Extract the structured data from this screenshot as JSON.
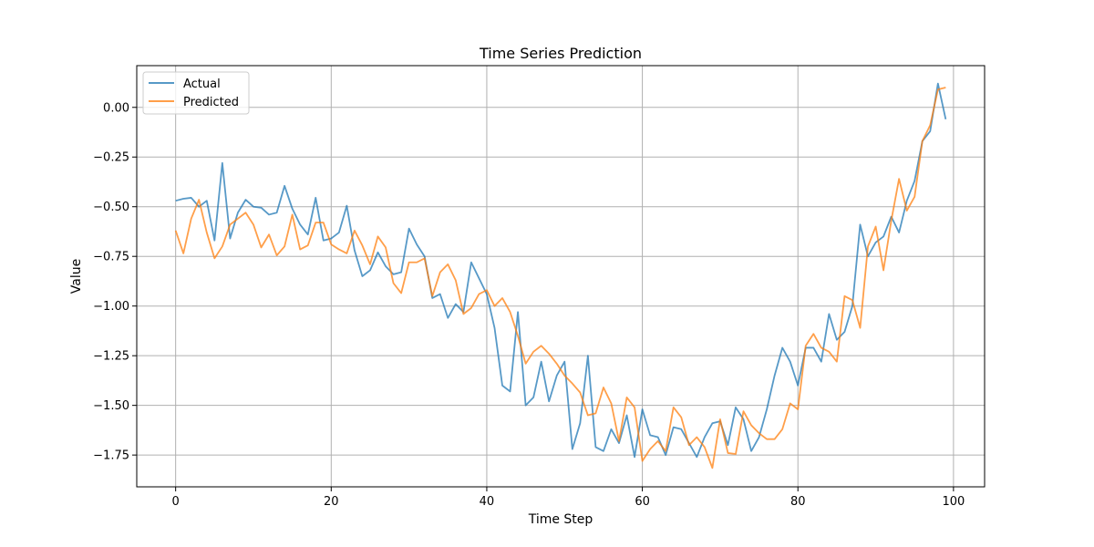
{
  "chart_data": {
    "type": "line",
    "title": "Time Series Prediction",
    "xlabel": "Time Step",
    "ylabel": "Value",
    "xlim": [
      -5,
      104
    ],
    "ylim": [
      -1.91,
      0.21
    ],
    "x_ticks": [
      0,
      20,
      40,
      60,
      80,
      100
    ],
    "x_tick_labels": [
      "0",
      "20",
      "40",
      "60",
      "80",
      "100"
    ],
    "y_ticks": [
      0.0,
      -0.25,
      -0.5,
      -0.75,
      -1.0,
      -1.25,
      -1.5,
      -1.75
    ],
    "y_tick_labels": [
      "0.00",
      "−0.25",
      "−0.50",
      "−0.75",
      "−1.00",
      "−1.25",
      "−1.50",
      "−1.75"
    ],
    "grid": true,
    "legend_position": "top-left",
    "series": [
      {
        "name": "Actual",
        "color": "#1f77b4",
        "x_start": 0,
        "values": [
          -0.47,
          -0.46,
          -0.455,
          -0.5,
          -0.47,
          -0.67,
          -0.28,
          -0.66,
          -0.53,
          -0.465,
          -0.5,
          -0.505,
          -0.54,
          -0.53,
          -0.395,
          -0.51,
          -0.59,
          -0.64,
          -0.455,
          -0.67,
          -0.66,
          -0.63,
          -0.495,
          -0.72,
          -0.85,
          -0.82,
          -0.73,
          -0.8,
          -0.84,
          -0.83,
          -0.61,
          -0.69,
          -0.75,
          -0.96,
          -0.94,
          -1.06,
          -0.99,
          -1.03,
          -0.78,
          -0.86,
          -0.94,
          -1.11,
          -1.4,
          -1.43,
          -1.03,
          -1.5,
          -1.46,
          -1.28,
          -1.48,
          -1.35,
          -1.28,
          -1.72,
          -1.59,
          -1.25,
          -1.71,
          -1.73,
          -1.62,
          -1.69,
          -1.55,
          -1.76,
          -1.52,
          -1.65,
          -1.66,
          -1.75,
          -1.61,
          -1.62,
          -1.69,
          -1.76,
          -1.66,
          -1.59,
          -1.58,
          -1.7,
          -1.51,
          -1.57,
          -1.73,
          -1.66,
          -1.52,
          -1.35,
          -1.21,
          -1.28,
          -1.4,
          -1.21,
          -1.21,
          -1.28,
          -1.04,
          -1.17,
          -1.13,
          -1.0,
          -0.59,
          -0.75,
          -0.68,
          -0.65,
          -0.55,
          -0.63,
          -0.47,
          -0.37,
          -0.17,
          -0.12,
          0.12,
          -0.06
        ]
      },
      {
        "name": "Predicted",
        "color": "#ff7f0e",
        "x_start": 0,
        "values": [
          -0.62,
          -0.735,
          -0.56,
          -0.465,
          -0.63,
          -0.76,
          -0.7,
          -0.59,
          -0.56,
          -0.53,
          -0.59,
          -0.705,
          -0.64,
          -0.745,
          -0.7,
          -0.54,
          -0.715,
          -0.695,
          -0.58,
          -0.58,
          -0.69,
          -0.715,
          -0.735,
          -0.62,
          -0.695,
          -0.79,
          -0.65,
          -0.705,
          -0.885,
          -0.935,
          -0.78,
          -0.78,
          -0.76,
          -0.95,
          -0.83,
          -0.79,
          -0.87,
          -1.04,
          -1.01,
          -0.94,
          -0.92,
          -1.0,
          -0.96,
          -1.03,
          -1.15,
          -1.29,
          -1.23,
          -1.2,
          -1.24,
          -1.29,
          -1.35,
          -1.39,
          -1.435,
          -1.55,
          -1.54,
          -1.41,
          -1.49,
          -1.68,
          -1.46,
          -1.51,
          -1.78,
          -1.72,
          -1.68,
          -1.73,
          -1.51,
          -1.56,
          -1.7,
          -1.66,
          -1.71,
          -1.815,
          -1.57,
          -1.74,
          -1.745,
          -1.53,
          -1.6,
          -1.64,
          -1.67,
          -1.67,
          -1.62,
          -1.49,
          -1.52,
          -1.2,
          -1.14,
          -1.21,
          -1.23,
          -1.28,
          -0.95,
          -0.97,
          -1.11,
          -0.7,
          -0.6,
          -0.82,
          -0.57,
          -0.36,
          -0.52,
          -0.45,
          -0.17,
          -0.09,
          0.09,
          0.1
        ]
      }
    ]
  }
}
